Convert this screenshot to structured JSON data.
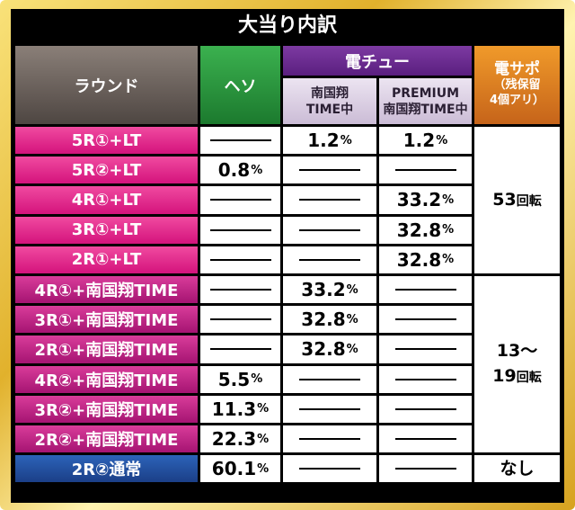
{
  "title": "大当り内訳",
  "headers": {
    "round": "ラウンド",
    "heso": "ヘソ",
    "denchu": "電チュー",
    "denchu_sub1_line1": "南国翔",
    "denchu_sub1_line2": "TIME中",
    "denchu_sub2_line1": "PREMIUM",
    "denchu_sub2_line2": "南国翔TIME中",
    "densapo_line1": "電サポ",
    "densapo_line2": "（残保留",
    "densapo_line3": "4個アリ）"
  },
  "rows": [
    {
      "label": "5R①+LT",
      "heso": "",
      "nangoku": "1.2",
      "premium": "1.2",
      "group": "lt"
    },
    {
      "label": "5R②+LT",
      "heso": "0.8",
      "nangoku": "",
      "premium": "",
      "group": "lt"
    },
    {
      "label": "4R①+LT",
      "heso": "",
      "nangoku": "",
      "premium": "33.2",
      "group": "lt"
    },
    {
      "label": "3R①+LT",
      "heso": "",
      "nangoku": "",
      "premium": "32.8",
      "group": "lt"
    },
    {
      "label": "2R①+LT",
      "heso": "",
      "nangoku": "",
      "premium": "32.8",
      "group": "lt"
    },
    {
      "label": "4R①+南国翔TIME",
      "heso": "",
      "nangoku": "33.2",
      "premium": "",
      "group": "time"
    },
    {
      "label": "3R①+南国翔TIME",
      "heso": "",
      "nangoku": "32.8",
      "premium": "",
      "group": "time"
    },
    {
      "label": "2R①+南国翔TIME",
      "heso": "",
      "nangoku": "32.8",
      "premium": "",
      "group": "time"
    },
    {
      "label": "4R②+南国翔TIME",
      "heso": "5.5",
      "nangoku": "",
      "premium": "",
      "group": "time"
    },
    {
      "label": "3R②+南国翔TIME",
      "heso": "11.3",
      "nangoku": "",
      "premium": "",
      "group": "time"
    },
    {
      "label": "2R②+南国翔TIME",
      "heso": "22.3",
      "nangoku": "",
      "premium": "",
      "group": "time"
    },
    {
      "label": "2R②通常",
      "heso": "60.1",
      "nangoku": "",
      "premium": "",
      "group": "normal"
    }
  ],
  "percent_sign": "%",
  "densapo_values": [
    {
      "line1": "53",
      "unit1": "回転",
      "line2": "",
      "unit2": ""
    },
    {
      "line1": "13～",
      "unit1": "",
      "line2": "19",
      "unit2": "回転"
    },
    {
      "line1": "なし",
      "unit1": "",
      "line2": "",
      "unit2": ""
    }
  ],
  "colors": {
    "lt_label": "#e0238a",
    "time_label": "#c01e82",
    "normal_label": "#1f4ea0",
    "heso_header": "#1f8a35",
    "denchu_header": "#6a2a92",
    "densapo_header": "#e07b20"
  }
}
